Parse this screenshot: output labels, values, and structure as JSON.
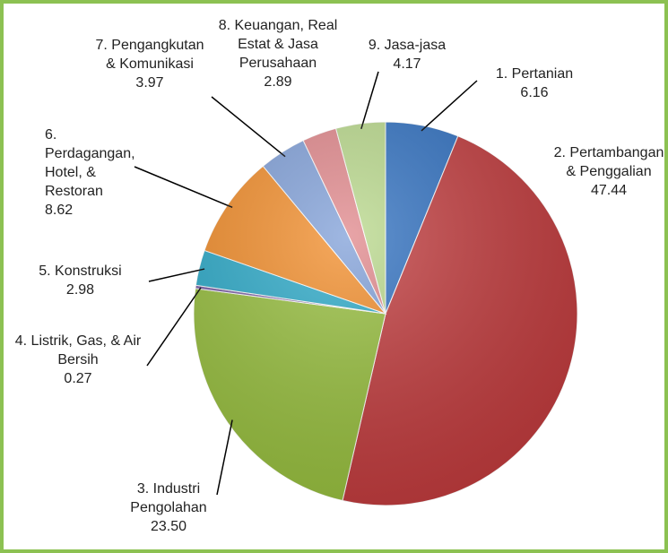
{
  "chart_data": {
    "type": "pie",
    "categories": [
      "1. Pertanian",
      "2. Pertambangan & Penggalian",
      "3. Industri Pengolahan",
      "4. Listrik, Gas, & Air Bersih",
      "5. Konstruksi",
      "6. Perdagangan, Hotel, & Restoran",
      "7. Pengangkutan & Komunikasi",
      "8. Keuangan, Real Estat & Jasa Perusahaan",
      "9. Jasa-jasa"
    ],
    "values": [
      6.16,
      47.44,
      23.5,
      0.27,
      2.98,
      8.62,
      3.97,
      2.89,
      4.17
    ],
    "value_labels": [
      "6.16",
      "47.44",
      "23.50",
      "0.27",
      "2.98",
      "8.62",
      "3.97",
      "2.89",
      "4.17"
    ],
    "colors": [
      "#2e6fc0",
      "#c0393b",
      "#96be3c",
      "#7b5ea7",
      "#2aa9c8",
      "#f28c28",
      "#7f9fd8",
      "#e0868a",
      "#b8d88a"
    ]
  }
}
